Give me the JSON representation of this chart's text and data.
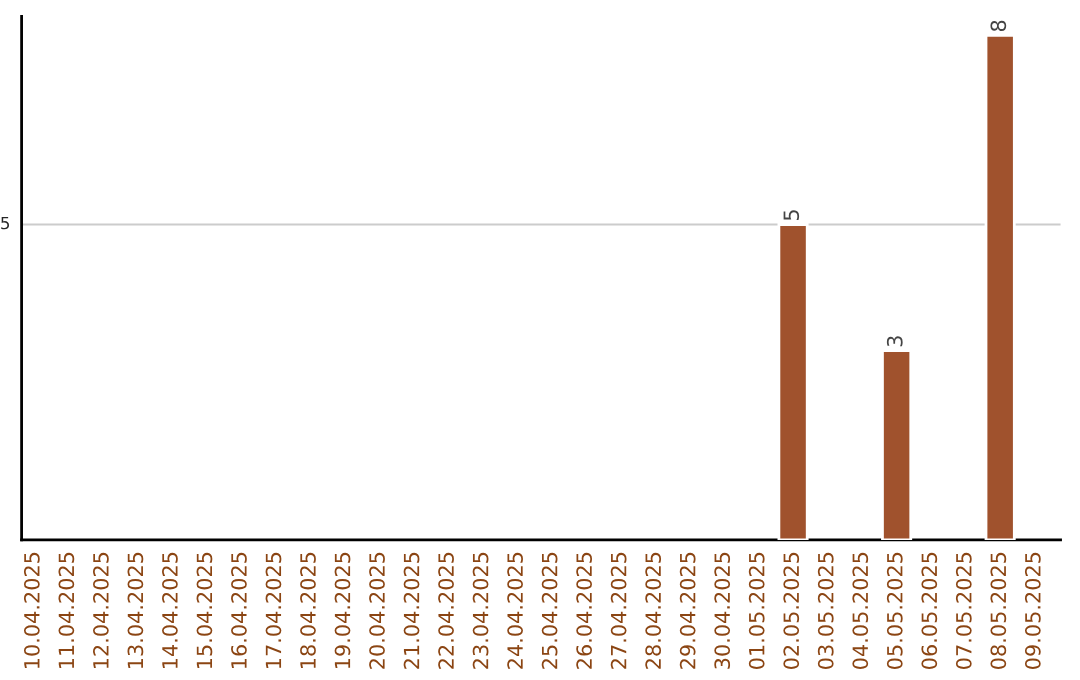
{
  "chart_data": {
    "type": "bar",
    "categories": [
      "10.04.2025",
      "11.04.2025",
      "12.04.2025",
      "13.04.2025",
      "14.04.2025",
      "15.04.2025",
      "16.04.2025",
      "17.04.2025",
      "18.04.2025",
      "19.04.2025",
      "20.04.2025",
      "21.04.2025",
      "22.04.2025",
      "23.04.2025",
      "24.04.2025",
      "25.04.2025",
      "26.04.2025",
      "27.04.2025",
      "28.04.2025",
      "29.04.2025",
      "30.04.2025",
      "01.05.2025",
      "02.05.2025",
      "03.05.2025",
      "04.05.2025",
      "05.05.2025",
      "06.05.2025",
      "07.05.2025",
      "08.05.2025",
      "09.05.2025"
    ],
    "values": [
      null,
      null,
      null,
      null,
      null,
      null,
      null,
      null,
      null,
      null,
      null,
      null,
      null,
      null,
      null,
      null,
      null,
      null,
      null,
      null,
      null,
      null,
      5,
      null,
      null,
      3,
      null,
      null,
      8,
      null
    ],
    "ylim": [
      0,
      8.3
    ],
    "data_labels": true,
    "color": "#a0522d",
    "ref_lines": [
      {
        "axis": "y",
        "value": 5,
        "label": "5",
        "color": "#cccccc"
      }
    ],
    "legend": false
  }
}
